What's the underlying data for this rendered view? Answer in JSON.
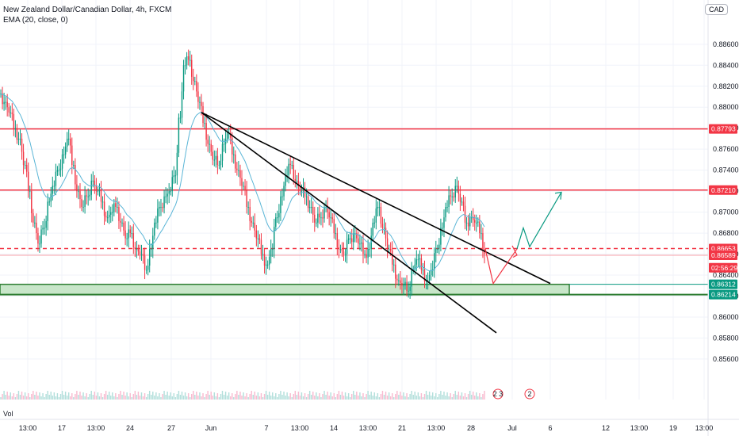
{
  "header": {
    "title": "New Zealand Dollar/Canadian Dollar, 4h, FXCM",
    "indicator": "EMA (20, close, 0)",
    "currency": "CAD",
    "volume_label": "Vol"
  },
  "chart_data": {
    "type": "candlestick",
    "ylim": [
      0.8535,
      0.8878
    ],
    "y_ticks": [
      "0.86600",
      "0.86400",
      "0.86200",
      "0.86000",
      "0.85800",
      "0.85600",
      "0.88600",
      "0.88400",
      "0.88200",
      "0.88000",
      "0.87800",
      "0.87600",
      "0.87400",
      "0.87200",
      "0.87000",
      "0.86800"
    ],
    "x_ticks": [
      "13:00",
      "17",
      "13:00",
      "24",
      "27",
      "Jun",
      "7",
      "13:00",
      "14",
      "13:00",
      "21",
      "13:00",
      "28",
      "Jul",
      "6",
      "12",
      "13:00",
      "19",
      "13:00"
    ],
    "price_tags": [
      {
        "label": "0.87793",
        "value": 0.87793,
        "color": "#f23645"
      },
      {
        "label": "0.87210",
        "value": 0.8721,
        "color": "#f23645"
      },
      {
        "label": "0.86653",
        "value": 0.86653,
        "color": "#f23645"
      },
      {
        "label": "0.86589",
        "value": 0.86589,
        "color": "#f23645"
      },
      {
        "label": "02:56:29",
        "value": 0.8647,
        "color": "#f23645"
      },
      {
        "label": "0.86312",
        "value": 0.86312,
        "color": "#089981"
      },
      {
        "label": "0.86214",
        "value": 0.86214,
        "color": "#089981"
      }
    ],
    "horizontal_lines": [
      {
        "value": 0.87793,
        "style": "solid",
        "color": "#f23645"
      },
      {
        "value": 0.8721,
        "style": "solid",
        "color": "#f23645"
      },
      {
        "value": 0.86653,
        "style": "dashed",
        "color": "#f23645"
      }
    ],
    "support_zone": {
      "top": 0.86312,
      "bottom": 0.86214,
      "color": "#c8e6c9",
      "border": "#2e7d32"
    },
    "closes": [
      0.8805,
      0.8795,
      0.878,
      0.877,
      0.8745,
      0.872,
      0.869,
      0.867,
      0.8685,
      0.871,
      0.8725,
      0.874,
      0.8755,
      0.877,
      0.8745,
      0.872,
      0.8705,
      0.8715,
      0.873,
      0.872,
      0.871,
      0.8695,
      0.87,
      0.8705,
      0.869,
      0.8675,
      0.868,
      0.8665,
      0.866,
      0.8645,
      0.8665,
      0.869,
      0.8705,
      0.8715,
      0.872,
      0.8735,
      0.879,
      0.884,
      0.8845,
      0.8825,
      0.8805,
      0.8785,
      0.8765,
      0.875,
      0.8745,
      0.8765,
      0.8775,
      0.8755,
      0.874,
      0.8725,
      0.8705,
      0.869,
      0.8675,
      0.866,
      0.865,
      0.8665,
      0.8695,
      0.8715,
      0.8735,
      0.8745,
      0.873,
      0.872,
      0.8715,
      0.8705,
      0.869,
      0.8695,
      0.8705,
      0.8695,
      0.868,
      0.8665,
      0.866,
      0.8675,
      0.868,
      0.867,
      0.866,
      0.8665,
      0.869,
      0.8705,
      0.8685,
      0.8665,
      0.865,
      0.8635,
      0.863,
      0.8625,
      0.8645,
      0.8655,
      0.8645,
      0.8635,
      0.8645,
      0.8665,
      0.8685,
      0.8705,
      0.8715,
      0.8725,
      0.871,
      0.869,
      0.8695,
      0.869,
      0.868,
      0.866
    ],
    "ema20_label": "EMA (20, close, 0)",
    "trendlines": [
      {
        "from": [
          "x",
          0.8795
        ],
        "to": [
          "x",
          0.8632
        ],
        "color": "#000000"
      },
      {
        "from": [
          "x",
          0.8795
        ],
        "to": [
          "x",
          0.8585
        ],
        "color": "#000000"
      }
    ],
    "projection_down": {
      "color": "#f23645"
    },
    "projection_up": {
      "color": "#089981"
    },
    "event_icons": [
      "2 3",
      "2"
    ],
    "colors": {
      "up": "#089981",
      "down": "#f23645",
      "ema": "#5ab5d6",
      "grid": "#f0f3fa"
    }
  }
}
